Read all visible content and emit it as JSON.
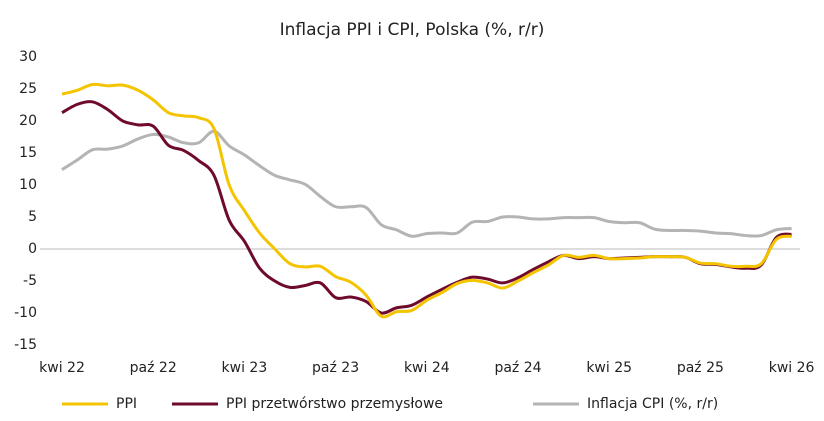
{
  "chart_data": {
    "type": "line",
    "title": "Inflacja PPI i CPI, Polska (%, r/r)",
    "categories": [
      "kwi 22",
      null,
      null,
      null,
      null,
      null,
      "paź 22",
      null,
      null,
      null,
      null,
      null,
      "kwi 23",
      null,
      null,
      null,
      null,
      null,
      "paź 23",
      null,
      null,
      null,
      null,
      null,
      "kwi 24",
      null,
      null,
      null,
      null,
      null,
      "paź 24",
      null,
      null,
      null,
      null,
      null,
      "kwi 25",
      null,
      null,
      null,
      null,
      null,
      "paź 25",
      null,
      null,
      null,
      null,
      null,
      "kwi 26"
    ],
    "series": [
      {
        "name": "PPI",
        "color": "#f5c400",
        "values": [
          24.2,
          24.8,
          25.7,
          25.5,
          25.6,
          24.8,
          23.3,
          21.3,
          20.8,
          20.5,
          18.8,
          10,
          6,
          2.5,
          0,
          -2.3,
          -2.8,
          -2.7,
          -4.3,
          -5.2,
          -7.2,
          -10.5,
          -9.8,
          -9.6,
          -8,
          -6.8,
          -5.4,
          -4.9,
          -5.3,
          -6.1,
          -5,
          -3.7,
          -2.5,
          -1,
          -1.3,
          -1,
          -1.5,
          -1.5,
          -1.4,
          -1.2,
          -1.2,
          -1.3,
          -2.2,
          -2.3,
          -2.7,
          -2.7,
          -2.3,
          1.5,
          2.0
        ]
      },
      {
        "name": "PPI przetwórstwo przemysłowe",
        "color": "#6e0a2e",
        "values": [
          21.3,
          22.6,
          23,
          21.8,
          20,
          19.4,
          19.2,
          16.2,
          15.4,
          13.8,
          11.5,
          4.5,
          1.2,
          -3,
          -5,
          -6,
          -5.7,
          -5.3,
          -7.6,
          -7.5,
          -8.2,
          -10,
          -9.2,
          -8.8,
          -7.5,
          -6.3,
          -5.2,
          -4.4,
          -4.7,
          -5.3,
          -4.5,
          -3.2,
          -2,
          -1,
          -1.5,
          -1.2,
          -1.5,
          -1.4,
          -1.3,
          -1.2,
          -1.2,
          -1.3,
          -2.3,
          -2.4,
          -2.8,
          -3,
          -2.5,
          1.8,
          2.3
        ]
      },
      {
        "name": "Inflacja CPI (%, r/r)",
        "color": "#b4b4b4",
        "values": [
          12.4,
          13.9,
          15.5,
          15.6,
          16.1,
          17.2,
          17.9,
          17.5,
          16.6,
          16.6,
          18.4,
          16.1,
          14.7,
          13,
          11.5,
          10.8,
          10.1,
          8.2,
          6.6,
          6.6,
          6.5,
          3.8,
          3,
          2,
          2.4,
          2.5,
          2.5,
          4.2,
          4.3,
          5,
          5,
          4.7,
          4.7,
          4.9,
          4.9,
          4.9,
          4.3,
          4.1,
          4.1,
          3.1,
          2.9,
          2.9,
          2.8,
          2.5,
          2.4,
          2.1,
          2.1,
          3,
          3.2
        ]
      }
    ],
    "ylim": [
      -15,
      30
    ],
    "yticks": [
      -15,
      -10,
      -5,
      0,
      5,
      10,
      15,
      20,
      25,
      30
    ],
    "grid": false,
    "legend": "bottom"
  }
}
